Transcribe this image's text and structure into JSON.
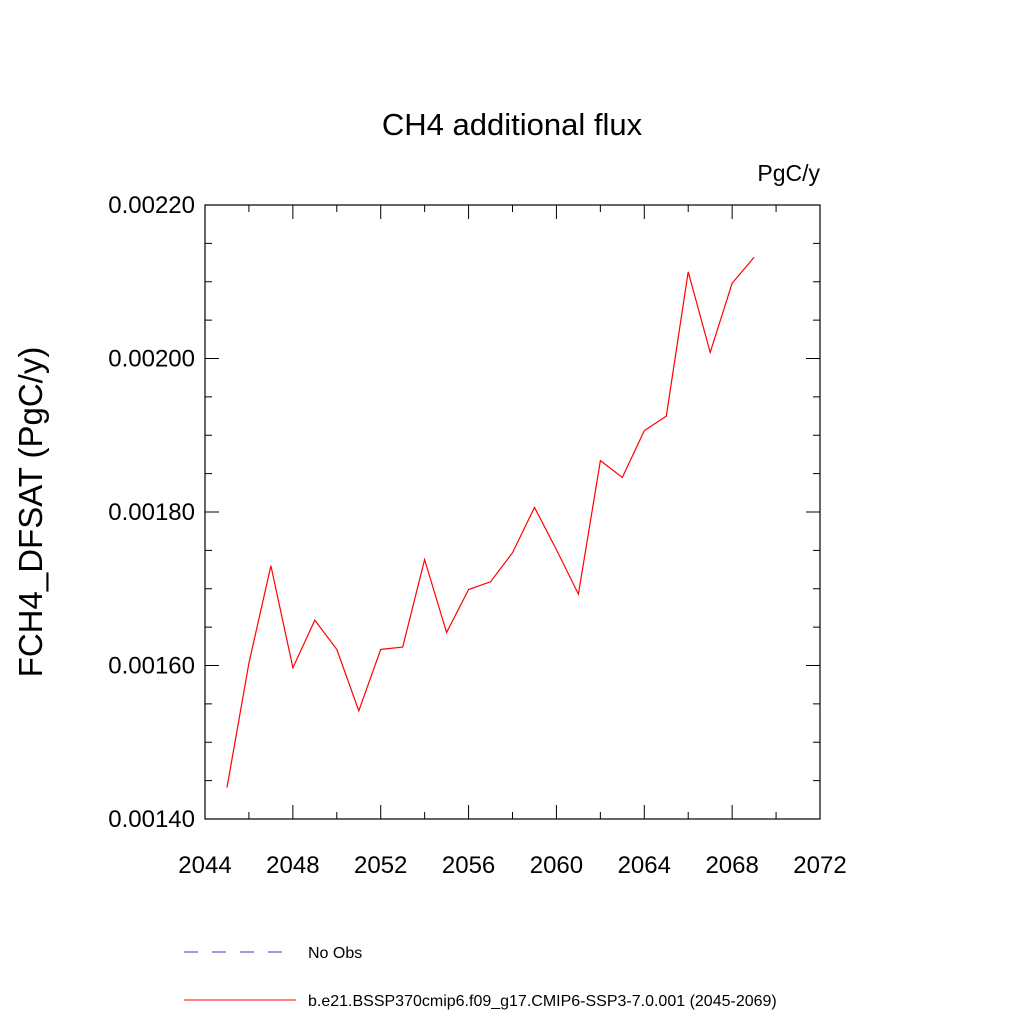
{
  "chart_data": {
    "type": "line",
    "title": "CH4 additional flux",
    "units": "PgC/y",
    "xlabel": "",
    "ylabel": "FCH4_DFSAT  (PgC/y)",
    "xlim": [
      2044,
      2072
    ],
    "ylim": [
      0.0014,
      0.0022
    ],
    "x_ticks": [
      2044,
      2048,
      2052,
      2056,
      2060,
      2064,
      2068,
      2072
    ],
    "y_ticks": [
      0.0014,
      0.0016,
      0.0018,
      0.002,
      0.0022
    ],
    "x_tick_labels": [
      "2044",
      "2048",
      "2052",
      "2056",
      "2060",
      "2064",
      "2068",
      "2072"
    ],
    "y_tick_labels": [
      "0.00140",
      "0.00160",
      "0.00180",
      "0.00200",
      "0.00220"
    ],
    "grid": false,
    "legend_position": "bottom",
    "series": [
      {
        "name": "b.e21.BSSP370cmip6.f09_g17.CMIP6-SSP3-7.0.001 (2045-2069)",
        "color": "#ff0000",
        "style": "solid",
        "x": [
          2045,
          2046,
          2047,
          2048,
          2049,
          2050,
          2051,
          2052,
          2053,
          2054,
          2055,
          2056,
          2057,
          2058,
          2059,
          2060,
          2061,
          2062,
          2063,
          2064,
          2065,
          2066,
          2067,
          2068,
          2069
        ],
        "y": [
          0.001441,
          0.001603,
          0.00173,
          0.001597,
          0.001659,
          0.001621,
          0.001541,
          0.001621,
          0.001624,
          0.001738,
          0.001643,
          0.001699,
          0.001709,
          0.001747,
          0.001806,
          0.001751,
          0.001693,
          0.001867,
          0.001845,
          0.001906,
          0.001925,
          0.002113,
          0.002008,
          0.002098,
          0.002132
        ]
      }
    ],
    "legend": [
      {
        "label": "No Obs",
        "color": "#3333cc",
        "style": "dashed"
      },
      {
        "label": "b.e21.BSSP370cmip6.f09_g17.CMIP6-SSP3-7.0.001 (2045-2069)",
        "color": "#ff0000",
        "style": "solid"
      }
    ]
  }
}
